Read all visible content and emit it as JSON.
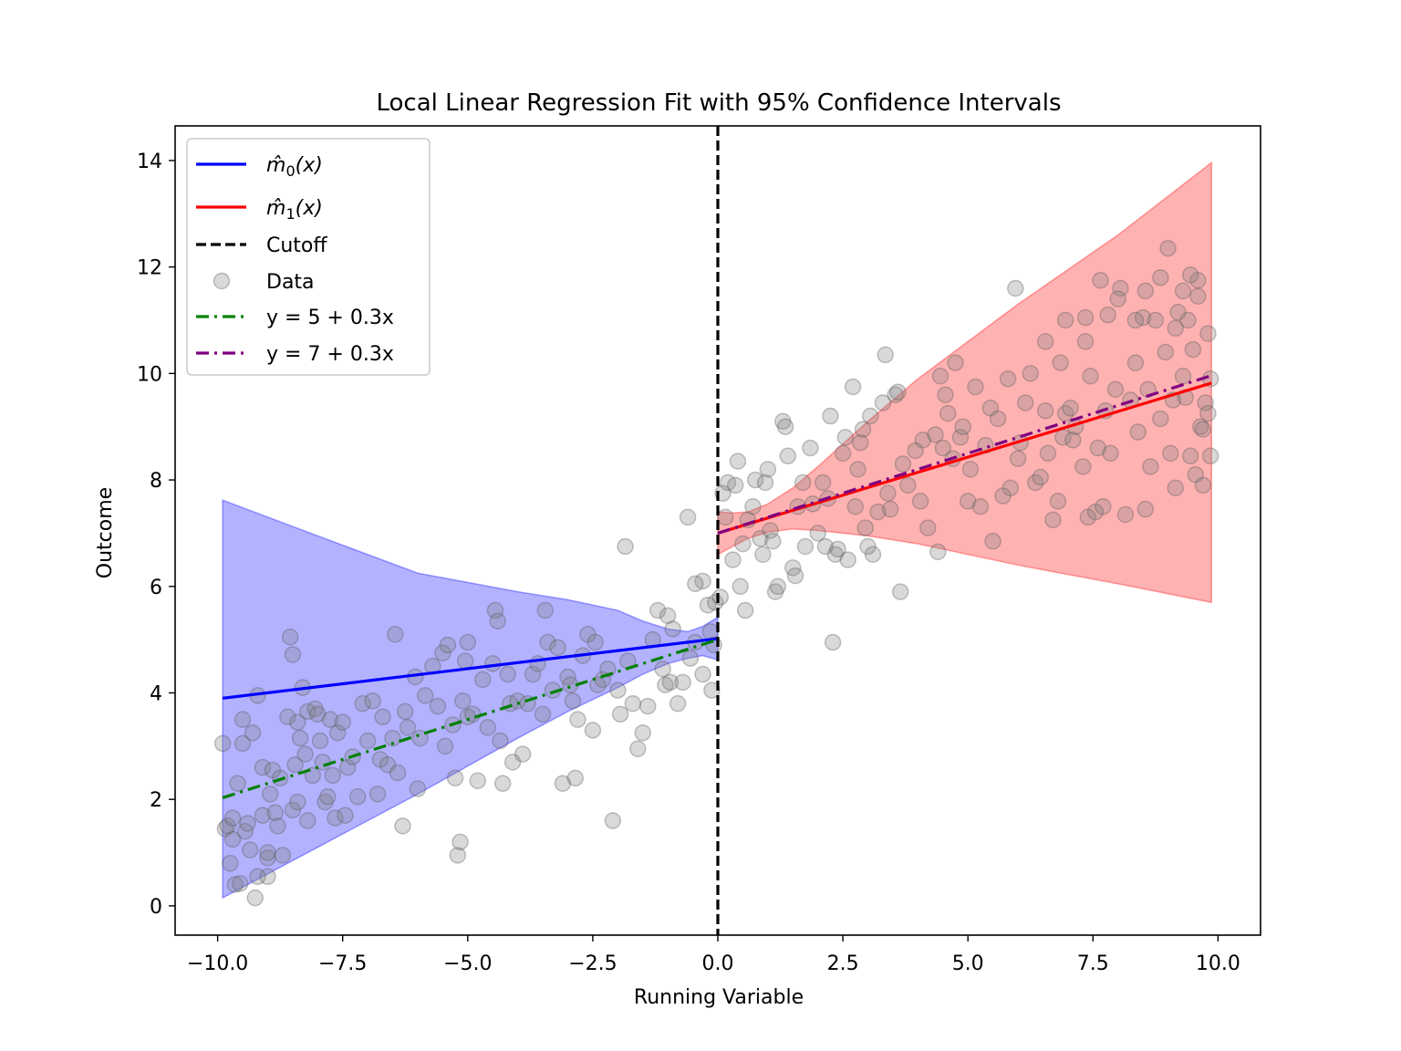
{
  "chart_data": {
    "type": "scatter",
    "title": "Local Linear Regression Fit with 95% Confidence Intervals",
    "xlabel": "Running Variable",
    "ylabel": "Outcome",
    "xlim": [
      -10.85,
      10.85
    ],
    "ylim": [
      -0.55,
      14.65
    ],
    "xticks": [
      -10.0,
      -7.5,
      -5.0,
      -2.5,
      0.0,
      2.5,
      5.0,
      7.5,
      10.0
    ],
    "xtick_labels": [
      "−10.0",
      "−7.5",
      "−5.0",
      "−2.5",
      "0.0",
      "2.5",
      "5.0",
      "7.5",
      "10.0"
    ],
    "yticks": [
      0,
      2,
      4,
      6,
      8,
      10,
      12,
      14
    ],
    "ytick_labels": [
      "0",
      "2",
      "4",
      "6",
      "8",
      "10",
      "12",
      "14"
    ],
    "grid": false,
    "legend_position": "top-left",
    "cutoff": 0,
    "colors": {
      "m0": "#0000ff",
      "m1": "#ff0000",
      "cutoff": "#000000",
      "data": "#808080",
      "true0": "#008000",
      "true1": "#800080",
      "band0": "#0000ff",
      "band1": "#ff0000"
    },
    "legend": [
      {
        "key": "m0",
        "label_main": "m̂",
        "label_sub": "0",
        "label_tail": "(x)",
        "style": "solid"
      },
      {
        "key": "m1",
        "label_main": "m̂",
        "label_sub": "1",
        "label_tail": "(x)",
        "style": "solid"
      },
      {
        "key": "cutoff",
        "label": "Cutoff",
        "style": "dashed"
      },
      {
        "key": "data",
        "label": "Data",
        "style": "marker"
      },
      {
        "key": "true0",
        "label": "y = 5 + 0.3x",
        "style": "dashdot"
      },
      {
        "key": "true1",
        "label": "y = 7 + 0.3x",
        "style": "dashdot"
      }
    ],
    "series": [
      {
        "name": "m0_hat",
        "x": [
          -9.9,
          0.0
        ],
        "y": [
          3.9,
          5.02
        ]
      },
      {
        "name": "m1_hat",
        "x": [
          0.0,
          9.87
        ],
        "y": [
          7.0,
          9.82
        ]
      },
      {
        "name": "true_left",
        "x": [
          -9.9,
          0.0
        ],
        "y": [
          2.03,
          5.0
        ]
      },
      {
        "name": "true_right",
        "x": [
          0.0,
          9.87
        ],
        "y": [
          7.0,
          9.96
        ]
      }
    ],
    "bands": [
      {
        "name": "ci_left",
        "x": [
          -9.9,
          -8.0,
          -6.0,
          -4.0,
          -3.0,
          -2.0,
          -1.5,
          -1.0,
          -0.6,
          -0.3,
          0.0
        ],
        "upper": [
          7.62,
          6.95,
          6.25,
          5.9,
          5.75,
          5.55,
          5.35,
          5.2,
          5.15,
          5.25,
          5.42
        ],
        "lower": [
          0.15,
          1.1,
          2.1,
          3.15,
          3.65,
          4.1,
          4.35,
          4.55,
          4.65,
          4.7,
          4.62
        ]
      },
      {
        "name": "ci_right",
        "x": [
          0.0,
          0.3,
          0.6,
          1.0,
          1.5,
          2.0,
          3.0,
          4.0,
          6.0,
          8.0,
          9.87
        ],
        "upper": [
          7.4,
          7.38,
          7.4,
          7.55,
          7.85,
          8.25,
          9.1,
          9.9,
          11.3,
          12.6,
          13.96
        ],
        "lower": [
          6.6,
          6.75,
          6.9,
          7.02,
          7.08,
          7.05,
          6.95,
          6.8,
          6.4,
          6.05,
          5.7
        ]
      }
    ],
    "points": [
      [
        -9.9,
        3.05
      ],
      [
        -9.85,
        1.45
      ],
      [
        -9.8,
        1.5
      ],
      [
        -9.75,
        0.8
      ],
      [
        -9.7,
        1.25
      ],
      [
        -9.7,
        1.65
      ],
      [
        -9.65,
        0.4
      ],
      [
        -9.6,
        2.3
      ],
      [
        -9.55,
        0.42
      ],
      [
        -9.5,
        3.5
      ],
      [
        -9.5,
        3.05
      ],
      [
        -9.45,
        1.4
      ],
      [
        -9.4,
        1.55
      ],
      [
        -9.35,
        1.05
      ],
      [
        -9.3,
        3.25
      ],
      [
        -9.25,
        0.15
      ],
      [
        -9.2,
        3.95
      ],
      [
        -9.2,
        0.55
      ],
      [
        -9.1,
        2.6
      ],
      [
        -9.1,
        1.7
      ],
      [
        -9.0,
        0.9
      ],
      [
        -9.0,
        0.55
      ],
      [
        -9.0,
        1.0
      ],
      [
        -8.95,
        2.1
      ],
      [
        -8.9,
        2.55
      ],
      [
        -8.85,
        1.75
      ],
      [
        -8.8,
        1.5
      ],
      [
        -8.75,
        2.4
      ],
      [
        -8.7,
        0.95
      ],
      [
        -8.6,
        3.55
      ],
      [
        -8.55,
        5.05
      ],
      [
        -8.5,
        4.72
      ],
      [
        -8.5,
        1.8
      ],
      [
        -8.45,
        2.65
      ],
      [
        -8.4,
        3.45
      ],
      [
        -8.4,
        1.95
      ],
      [
        -8.35,
        3.15
      ],
      [
        -8.3,
        4.1
      ],
      [
        -8.25,
        2.85
      ],
      [
        -8.2,
        1.6
      ],
      [
        -8.2,
        3.65
      ],
      [
        -8.1,
        2.45
      ],
      [
        -8.05,
        3.7
      ],
      [
        -8.0,
        3.6
      ],
      [
        -7.95,
        3.1
      ],
      [
        -7.9,
        2.7
      ],
      [
        -7.85,
        1.95
      ],
      [
        -7.8,
        2.05
      ],
      [
        -7.75,
        3.5
      ],
      [
        -7.7,
        2.45
      ],
      [
        -7.65,
        1.65
      ],
      [
        -7.6,
        3.25
      ],
      [
        -7.5,
        3.45
      ],
      [
        -7.45,
        1.7
      ],
      [
        -7.4,
        2.6
      ],
      [
        -7.3,
        2.8
      ],
      [
        -7.2,
        2.05
      ],
      [
        -7.1,
        3.8
      ],
      [
        -7.0,
        3.1
      ],
      [
        -6.9,
        3.85
      ],
      [
        -6.8,
        2.1
      ],
      [
        -6.75,
        2.75
      ],
      [
        -6.7,
        3.55
      ],
      [
        -6.6,
        2.65
      ],
      [
        -6.5,
        3.15
      ],
      [
        -6.45,
        5.1
      ],
      [
        -6.4,
        2.5
      ],
      [
        -6.3,
        1.5
      ],
      [
        -6.25,
        3.65
      ],
      [
        -6.2,
        3.35
      ],
      [
        -6.05,
        4.3
      ],
      [
        -6.0,
        2.2
      ],
      [
        -5.95,
        3.15
      ],
      [
        -5.85,
        3.95
      ],
      [
        -5.7,
        4.5
      ],
      [
        -5.6,
        3.75
      ],
      [
        -5.5,
        4.75
      ],
      [
        -5.45,
        3.0
      ],
      [
        -5.4,
        4.9
      ],
      [
        -5.3,
        3.4
      ],
      [
        -5.25,
        2.4
      ],
      [
        -5.2,
        0.95
      ],
      [
        -5.15,
        1.2
      ],
      [
        -5.1,
        3.85
      ],
      [
        -5.05,
        4.6
      ],
      [
        -5.0,
        4.95
      ],
      [
        -5.0,
        3.55
      ],
      [
        -4.9,
        3.6
      ],
      [
        -4.8,
        2.35
      ],
      [
        -4.7,
        4.25
      ],
      [
        -4.6,
        3.35
      ],
      [
        -4.5,
        4.55
      ],
      [
        -4.45,
        5.55
      ],
      [
        -4.4,
        5.35
      ],
      [
        -4.35,
        3.1
      ],
      [
        -4.3,
        2.3
      ],
      [
        -4.2,
        4.35
      ],
      [
        -4.15,
        3.8
      ],
      [
        -4.1,
        2.7
      ],
      [
        -4.0,
        3.85
      ],
      [
        -3.9,
        2.85
      ],
      [
        -3.8,
        3.8
      ],
      [
        -3.7,
        4.35
      ],
      [
        -3.6,
        4.55
      ],
      [
        -3.5,
        3.6
      ],
      [
        -3.45,
        5.55
      ],
      [
        -3.4,
        4.95
      ],
      [
        -3.3,
        4.05
      ],
      [
        -3.2,
        4.85
      ],
      [
        -3.1,
        2.3
      ],
      [
        -3.0,
        4.3
      ],
      [
        -2.95,
        4.15
      ],
      [
        -2.9,
        3.85
      ],
      [
        -2.85,
        2.4
      ],
      [
        -2.8,
        3.5
      ],
      [
        -2.7,
        4.7
      ],
      [
        -2.6,
        5.1
      ],
      [
        -2.5,
        3.3
      ],
      [
        -2.45,
        4.95
      ],
      [
        -2.4,
        4.15
      ],
      [
        -2.3,
        4.25
      ],
      [
        -2.2,
        4.45
      ],
      [
        -2.1,
        1.6
      ],
      [
        -2.0,
        4.05
      ],
      [
        -1.95,
        3.6
      ],
      [
        -1.85,
        6.75
      ],
      [
        -1.8,
        4.6
      ],
      [
        -1.7,
        3.8
      ],
      [
        -1.6,
        2.95
      ],
      [
        -1.5,
        3.25
      ],
      [
        -1.4,
        3.75
      ],
      [
        -1.3,
        5.0
      ],
      [
        -1.2,
        5.55
      ],
      [
        -1.1,
        4.45
      ],
      [
        -1.05,
        4.15
      ],
      [
        -1.0,
        5.45
      ],
      [
        -0.95,
        4.2
      ],
      [
        -0.9,
        5.2
      ],
      [
        -0.8,
        3.8
      ],
      [
        -0.7,
        4.2
      ],
      [
        -0.6,
        7.3
      ],
      [
        -0.55,
        4.65
      ],
      [
        -0.45,
        4.95
      ],
      [
        -0.3,
        4.35
      ],
      [
        -0.2,
        5.65
      ],
      [
        -0.15,
        5.15
      ],
      [
        -0.12,
        4.05
      ],
      [
        -0.08,
        4.9
      ],
      [
        -0.05,
        5.7
      ],
      [
        -0.3,
        6.1
      ],
      [
        -0.45,
        6.05
      ],
      [
        0.05,
        5.8
      ],
      [
        0.1,
        7.75
      ],
      [
        0.15,
        7.3
      ],
      [
        0.2,
        7.95
      ],
      [
        0.3,
        6.5
      ],
      [
        0.35,
        7.9
      ],
      [
        0.4,
        8.35
      ],
      [
        0.45,
        6.0
      ],
      [
        0.5,
        6.8
      ],
      [
        0.55,
        5.55
      ],
      [
        0.6,
        7.25
      ],
      [
        0.7,
        7.5
      ],
      [
        0.75,
        8.0
      ],
      [
        0.85,
        6.9
      ],
      [
        0.9,
        6.6
      ],
      [
        0.95,
        7.95
      ],
      [
        1.0,
        8.2
      ],
      [
        1.05,
        7.05
      ],
      [
        1.1,
        6.85
      ],
      [
        1.15,
        5.9
      ],
      [
        1.2,
        6.0
      ],
      [
        1.3,
        9.1
      ],
      [
        1.35,
        9.0
      ],
      [
        1.4,
        8.45
      ],
      [
        1.5,
        6.35
      ],
      [
        1.55,
        6.2
      ],
      [
        1.6,
        7.5
      ],
      [
        1.7,
        7.95
      ],
      [
        1.75,
        6.75
      ],
      [
        1.85,
        8.6
      ],
      [
        1.9,
        7.55
      ],
      [
        2.0,
        7.0
      ],
      [
        2.1,
        7.95
      ],
      [
        2.15,
        6.75
      ],
      [
        2.2,
        7.65
      ],
      [
        2.25,
        9.2
      ],
      [
        2.3,
        4.95
      ],
      [
        2.35,
        6.6
      ],
      [
        2.4,
        6.7
      ],
      [
        2.5,
        8.5
      ],
      [
        2.55,
        8.8
      ],
      [
        2.6,
        6.5
      ],
      [
        2.7,
        9.75
      ],
      [
        2.75,
        7.5
      ],
      [
        2.8,
        8.2
      ],
      [
        2.85,
        8.7
      ],
      [
        2.9,
        8.95
      ],
      [
        2.95,
        7.1
      ],
      [
        3.0,
        6.75
      ],
      [
        3.05,
        9.2
      ],
      [
        3.1,
        6.6
      ],
      [
        3.2,
        7.4
      ],
      [
        3.3,
        9.45
      ],
      [
        3.35,
        10.35
      ],
      [
        3.4,
        7.75
      ],
      [
        3.45,
        7.45
      ],
      [
        3.55,
        9.6
      ],
      [
        3.6,
        9.65
      ],
      [
        3.65,
        5.9
      ],
      [
        3.7,
        8.3
      ],
      [
        3.8,
        7.9
      ],
      [
        3.95,
        8.55
      ],
      [
        4.05,
        7.6
      ],
      [
        4.1,
        8.75
      ],
      [
        4.2,
        7.1
      ],
      [
        4.35,
        8.85
      ],
      [
        4.4,
        6.65
      ],
      [
        4.45,
        9.95
      ],
      [
        4.5,
        8.6
      ],
      [
        4.55,
        9.6
      ],
      [
        4.6,
        9.25
      ],
      [
        4.7,
        8.4
      ],
      [
        4.75,
        10.2
      ],
      [
        4.85,
        8.8
      ],
      [
        4.9,
        9.0
      ],
      [
        5.0,
        7.6
      ],
      [
        5.05,
        8.2
      ],
      [
        5.15,
        9.75
      ],
      [
        5.25,
        7.5
      ],
      [
        5.35,
        8.65
      ],
      [
        5.45,
        9.35
      ],
      [
        5.5,
        6.85
      ],
      [
        5.6,
        9.15
      ],
      [
        5.7,
        7.7
      ],
      [
        5.8,
        9.9
      ],
      [
        5.85,
        7.85
      ],
      [
        5.95,
        11.6
      ],
      [
        6.0,
        8.4
      ],
      [
        6.05,
        8.7
      ],
      [
        6.15,
        9.45
      ],
      [
        6.25,
        10.0
      ],
      [
        6.35,
        7.95
      ],
      [
        6.45,
        8.05
      ],
      [
        6.55,
        9.3
      ],
      [
        6.6,
        8.5
      ],
      [
        6.7,
        7.25
      ],
      [
        6.8,
        7.6
      ],
      [
        6.85,
        10.2
      ],
      [
        6.9,
        8.8
      ],
      [
        6.95,
        9.25
      ],
      [
        7.05,
        9.35
      ],
      [
        7.1,
        8.75
      ],
      [
        7.15,
        9.0
      ],
      [
        7.3,
        8.25
      ],
      [
        7.35,
        10.6
      ],
      [
        7.4,
        7.3
      ],
      [
        7.45,
        9.95
      ],
      [
        7.55,
        7.4
      ],
      [
        7.6,
        8.6
      ],
      [
        7.7,
        7.5
      ],
      [
        7.75,
        9.3
      ],
      [
        7.85,
        8.5
      ],
      [
        7.95,
        9.7
      ],
      [
        8.05,
        11.6
      ],
      [
        8.15,
        7.35
      ],
      [
        8.25,
        9.5
      ],
      [
        8.35,
        10.2
      ],
      [
        8.4,
        8.9
      ],
      [
        8.5,
        11.05
      ],
      [
        8.55,
        7.45
      ],
      [
        8.6,
        9.7
      ],
      [
        8.65,
        8.25
      ],
      [
        8.75,
        11.0
      ],
      [
        8.85,
        9.15
      ],
      [
        8.95,
        10.4
      ],
      [
        9.05,
        8.5
      ],
      [
        9.1,
        9.5
      ],
      [
        9.15,
        7.85
      ],
      [
        9.2,
        11.15
      ],
      [
        9.3,
        9.95
      ],
      [
        9.35,
        9.55
      ],
      [
        9.4,
        11.0
      ],
      [
        9.45,
        8.45
      ],
      [
        9.5,
        10.45
      ],
      [
        9.55,
        8.1
      ],
      [
        9.6,
        11.75
      ],
      [
        9.65,
        9.0
      ],
      [
        9.7,
        7.9
      ],
      [
        9.75,
        9.45
      ],
      [
        9.8,
        10.75
      ],
      [
        9.85,
        8.45
      ],
      [
        9.85,
        9.9
      ],
      [
        9.8,
        9.25
      ],
      [
        9.7,
        8.95
      ],
      [
        9.6,
        11.45
      ],
      [
        9.45,
        11.85
      ],
      [
        9.3,
        11.55
      ],
      [
        9.15,
        10.85
      ],
      [
        9.0,
        12.35
      ],
      [
        8.85,
        11.8
      ],
      [
        8.55,
        11.55
      ],
      [
        8.35,
        11.0
      ],
      [
        8.0,
        11.4
      ],
      [
        7.8,
        11.1
      ],
      [
        7.65,
        11.75
      ],
      [
        7.35,
        11.05
      ],
      [
        6.95,
        11.0
      ],
      [
        6.55,
        10.6
      ]
    ]
  }
}
